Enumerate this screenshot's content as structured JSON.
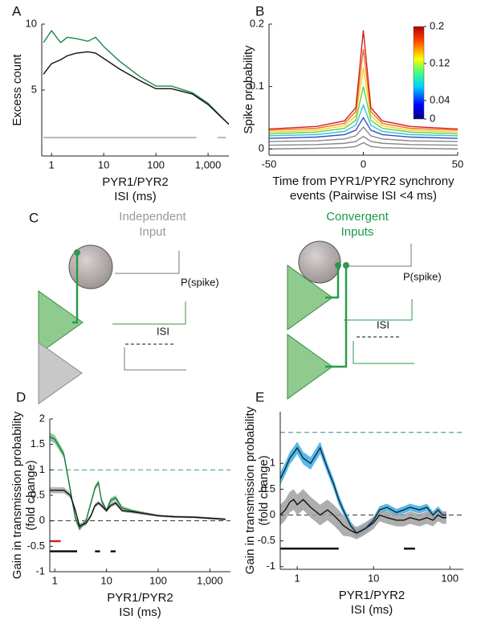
{
  "chart_data": [
    {
      "type": "line",
      "panel": "A",
      "ylabel": [
        "Excess count"
      ],
      "xlabel": [
        "PYR1/PYR2",
        "ISI (ms)"
      ],
      "xscale": "log",
      "xlim": [
        0.65,
        2500
      ],
      "ylim": [
        0,
        10
      ],
      "xticks": [
        1,
        10,
        100,
        {
          "value": 1000,
          "label": "1,000"
        }
      ],
      "yticks": [
        5,
        10
      ],
      "x": [
        0.7,
        1,
        1.5,
        2,
        3,
        5,
        7,
        10,
        20,
        50,
        100,
        200,
        500,
        1000,
        2500
      ],
      "series": [
        {
          "color": "#1a8a4a",
          "values": [
            8.6,
            9.5,
            8.6,
            9.0,
            8.9,
            8.7,
            9.0,
            8.3,
            7.2,
            6.0,
            5.3,
            5.3,
            4.8,
            4.0,
            2.4
          ]
        },
        {
          "color": "#111111",
          "values": [
            6.2,
            7.0,
            7.3,
            7.6,
            7.8,
            7.9,
            7.8,
            7.4,
            6.6,
            5.7,
            5.1,
            5.1,
            4.7,
            3.9,
            2.4
          ]
        },
        {
          "color": "#999999",
          "x": [
            0.7,
            600,
            1000,
            1500,
            2200
          ],
          "values": [
            1.4,
            1.4,
            null,
            1.4,
            1.4
          ]
        }
      ]
    },
    {
      "type": "line",
      "panel": "B",
      "ylabel": [
        "Spike probability"
      ],
      "xlabel": [
        "Time from PYR1/PYR2 synchrony",
        "events (Pairwise ISI <4 ms)"
      ],
      "xscale": "linear",
      "xlim": [
        -50,
        50
      ],
      "ylim": [
        -0.01,
        0.2
      ],
      "xticks": [
        -50,
        0,
        50
      ],
      "yticks": [
        0,
        0.1,
        0.2
      ],
      "colorbar": {
        "colormap": "jet",
        "clim": [
          0,
          0.2
        ],
        "ticks": [
          0,
          0.04,
          0.12,
          0.2
        ]
      },
      "x": [
        -50,
        -25,
        -10,
        -4,
        0,
        4,
        10,
        25,
        50
      ],
      "series": [
        {
          "color": "#888888",
          "values": [
            0,
            0.001,
            0.002,
            0.004,
            0.01,
            0.004,
            0.002,
            0.001,
            0
          ]
        },
        {
          "color": "#888888",
          "values": [
            0.006,
            0.007,
            0.009,
            0.012,
            0.02,
            0.012,
            0.009,
            0.007,
            0.006
          ]
        },
        {
          "color": "#888888",
          "values": [
            0.012,
            0.013,
            0.016,
            0.021,
            0.035,
            0.021,
            0.016,
            0.013,
            0.012
          ]
        },
        {
          "color": "#3050c0",
          "values": [
            0.017,
            0.019,
            0.023,
            0.03,
            0.05,
            0.03,
            0.023,
            0.019,
            0.017
          ]
        },
        {
          "color": "#30c0e0",
          "values": [
            0.021,
            0.023,
            0.028,
            0.038,
            0.07,
            0.038,
            0.028,
            0.023,
            0.021
          ]
        },
        {
          "color": "#60d040",
          "values": [
            0.024,
            0.027,
            0.033,
            0.046,
            0.1,
            0.046,
            0.033,
            0.027,
            0.024
          ]
        },
        {
          "color": "#f0d020",
          "values": [
            0.027,
            0.03,
            0.037,
            0.053,
            0.13,
            0.053,
            0.037,
            0.03,
            0.027
          ]
        },
        {
          "color": "#f07020",
          "values": [
            0.03,
            0.033,
            0.041,
            0.06,
            0.16,
            0.06,
            0.041,
            0.033,
            0.03
          ]
        },
        {
          "color": "#d02020",
          "values": [
            0.032,
            0.036,
            0.045,
            0.066,
            0.19,
            0.066,
            0.045,
            0.036,
            0.032
          ]
        }
      ]
    },
    {
      "type": "line",
      "panel": "D",
      "ylabel": [
        "Gain in transmission probability",
        "(fold change)"
      ],
      "xlabel": [
        "PYR1/PYR2",
        "ISI (ms)"
      ],
      "xscale": "log",
      "xlim": [
        0.8,
        2500
      ],
      "ylim": [
        -1,
        2
      ],
      "xticks": [
        1,
        10,
        100,
        {
          "value": 1000,
          "label": "1,000"
        }
      ],
      "yticks": [
        -1,
        -0.5,
        0,
        0.5,
        1,
        1.5,
        2
      ],
      "x": [
        0.8,
        1,
        1.5,
        2,
        2.5,
        3,
        4,
        5,
        6,
        7,
        8,
        10,
        12,
        15,
        20,
        30,
        50,
        100,
        200,
        500,
        1000,
        2000
      ],
      "series": [
        {
          "color": "#1a7a3a",
          "band_color": "#7fc08f",
          "values": [
            1.65,
            1.6,
            1.3,
            0.6,
            0.05,
            -0.15,
            0.0,
            0.35,
            0.65,
            0.75,
            0.4,
            0.2,
            0.4,
            0.45,
            0.25,
            0.2,
            0.15,
            0.1,
            0.08,
            0.07,
            0.05,
            0.03
          ],
          "errors": [
            0.08,
            0.08,
            0.07,
            0.06,
            0.05,
            0.05,
            0.04,
            0.04,
            0.05,
            0.05,
            0.05,
            0.04,
            0.05,
            0.05,
            0.04,
            0.03,
            0.03,
            0.02,
            0.02,
            0.02,
            0.02,
            0.02
          ]
        },
        {
          "color": "#111111",
          "band_color": "#a8a8a8",
          "values": [
            0.6,
            0.6,
            0.6,
            0.5,
            0.2,
            -0.1,
            -0.05,
            0.1,
            0.3,
            0.35,
            0.3,
            0.2,
            0.3,
            0.35,
            0.2,
            0.18,
            0.15,
            0.1,
            0.08,
            0.07,
            0.05,
            0.03
          ],
          "errors": [
            0.06,
            0.06,
            0.06,
            0.05,
            0.05,
            0.05,
            0.04,
            0.04,
            0.04,
            0.04,
            0.04,
            0.04,
            0.04,
            0.04,
            0.03,
            0.03,
            0.03,
            0.02,
            0.02,
            0.02,
            0.02,
            0.02
          ]
        }
      ],
      "ref_lines": [
        {
          "y": 1,
          "color": "#2a9a8a"
        },
        {
          "y": 0,
          "color": "#333333"
        }
      ],
      "sig_bars": [
        {
          "x": [
            0.8,
            1.3
          ],
          "y": -0.4,
          "color": "#d02020"
        },
        {
          "x": [
            0.8,
            2.7
          ],
          "y": -0.6,
          "color": "#111111"
        },
        {
          "x": [
            6,
            7.5
          ],
          "y": -0.6,
          "color": "#111111"
        },
        {
          "x": [
            12,
            15
          ],
          "y": -0.6,
          "color": "#111111"
        }
      ]
    },
    {
      "type": "line",
      "panel": "E",
      "ylabel": [
        "Gain in transmission probability",
        "(fold change)"
      ],
      "xlabel": [
        "PYR1/PYR2",
        "ISI (ms)"
      ],
      "xscale": "log",
      "xlim": [
        0.6,
        150
      ],
      "ylim": [
        -1.05,
        2
      ],
      "xticks": [
        1,
        10,
        100
      ],
      "yticks": [
        -1,
        -0.5,
        0,
        0.5,
        1
      ],
      "x": [
        0.6,
        0.7,
        0.8,
        0.9,
        1,
        1.2,
        1.5,
        2,
        2.5,
        3,
        3.5,
        4,
        5,
        6,
        7,
        8,
        10,
        12,
        15,
        20,
        25,
        30,
        40,
        50,
        60,
        70,
        80,
        90
      ],
      "series": [
        {
          "color": "#0a2a4a",
          "band_color": "#3aaee0",
          "values": [
            0.7,
            0.9,
            1.1,
            1.2,
            1.3,
            1.1,
            1.0,
            1.3,
            0.9,
            0.6,
            0.3,
            0.1,
            -0.2,
            -0.35,
            -0.3,
            -0.25,
            -0.1,
            0.1,
            0.15,
            0.05,
            0.1,
            0.15,
            0.1,
            0.15,
            0.0,
            0.1,
            0.0,
            0.0
          ],
          "errors": [
            0.12,
            0.12,
            0.12,
            0.12,
            0.12,
            0.12,
            0.12,
            0.12,
            0.1,
            0.1,
            0.1,
            0.08,
            0.08,
            0.08,
            0.08,
            0.07,
            0.07,
            0.07,
            0.07,
            0.07,
            0.07,
            0.07,
            0.07,
            0.07,
            0.07,
            0.07,
            0.07,
            0.07
          ]
        },
        {
          "color": "#111111",
          "band_color": "#a0a0a0",
          "values": [
            0.0,
            0.1,
            0.25,
            0.3,
            0.2,
            0.3,
            0.15,
            0.0,
            0.1,
            0.0,
            -0.1,
            -0.2,
            -0.3,
            -0.35,
            -0.3,
            -0.25,
            -0.15,
            0.0,
            -0.05,
            -0.1,
            -0.1,
            -0.05,
            -0.1,
            -0.05,
            -0.1,
            0.0,
            -0.05,
            -0.05
          ],
          "errors": [
            0.2,
            0.2,
            0.2,
            0.2,
            0.2,
            0.2,
            0.2,
            0.2,
            0.2,
            0.2,
            0.2,
            0.2,
            0.12,
            0.12,
            0.12,
            0.12,
            0.12,
            0.12,
            0.12,
            0.12,
            0.12,
            0.12,
            0.12,
            0.12,
            0.12,
            0.12,
            0.12,
            0.12
          ]
        }
      ],
      "ref_lines": [
        {
          "y": 1.6,
          "color": "#2a8aa0"
        },
        {
          "y": 0,
          "color": "#333333"
        }
      ],
      "sig_bars": [
        {
          "x": [
            0.6,
            3.5
          ],
          "y": -0.65,
          "color": "#111111"
        },
        {
          "x": [
            25,
            35
          ],
          "y": -0.65,
          "color": "#111111"
        }
      ]
    }
  ],
  "diagram": {
    "panel": "C",
    "left_title": [
      "Independent",
      "Input"
    ],
    "right_title": [
      "Convergent",
      "Inputs"
    ],
    "left_output": "P(spike)",
    "right_output": "P(spike)",
    "left_interval": "ISI",
    "right_interval": "ISI"
  }
}
